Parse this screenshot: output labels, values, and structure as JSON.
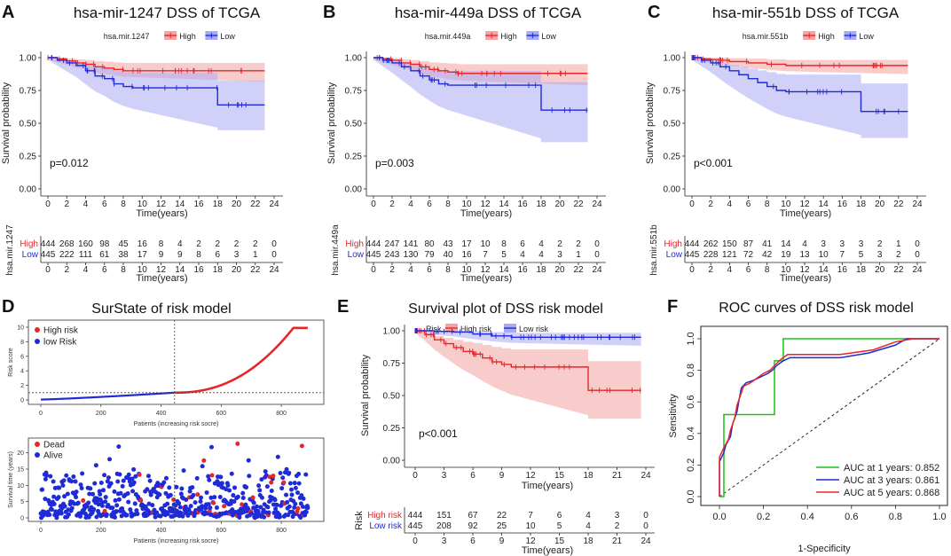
{
  "colors": {
    "high": "#e8262a",
    "low": "#1f2bd6",
    "high_fill": "#f4a3a3",
    "low_fill": "#a9a9f4",
    "green": "#19c219",
    "axis": "#222222",
    "grid": "#333333"
  },
  "chart_data": [
    {
      "id": "A",
      "type": "line",
      "panel_letter": "A",
      "title": "hsa-mir-1247 DSS of TCGA",
      "legend_title": "hsa.mir.1247",
      "legend_labels": [
        "High",
        "Low"
      ],
      "xlabel": "Time(years)",
      "ylabel": "Survival probability",
      "xlim": [
        0,
        24
      ],
      "ylim": [
        0,
        1
      ],
      "xticks": [
        "0",
        "2",
        "4",
        "6",
        "8",
        "10",
        "12",
        "14",
        "16",
        "18",
        "20",
        "22",
        "24"
      ],
      "yticks": [
        "0.00",
        "0.25",
        "0.50",
        "0.75",
        "1.00"
      ],
      "pvalue": "p=0.012",
      "series": [
        {
          "name": "High",
          "points": [
            [
              0,
              1
            ],
            [
              1,
              0.99
            ],
            [
              2,
              0.975
            ],
            [
              3,
              0.96
            ],
            [
              4,
              0.95
            ],
            [
              5,
              0.93
            ],
            [
              6,
              0.92
            ],
            [
              7,
              0.91
            ],
            [
              8,
              0.9
            ],
            [
              23,
              0.9
            ]
          ],
          "ci_upper": 0.99,
          "ci_lower": 0.82
        },
        {
          "name": "Low",
          "points": [
            [
              0,
              1
            ],
            [
              1,
              0.98
            ],
            [
              2,
              0.96
            ],
            [
              3,
              0.94
            ],
            [
              4,
              0.9
            ],
            [
              5,
              0.86
            ],
            [
              6,
              0.84
            ],
            [
              7,
              0.8
            ],
            [
              8,
              0.78
            ],
            [
              9,
              0.77
            ],
            [
              18,
              0.77
            ],
            [
              18,
              0.64
            ],
            [
              23,
              0.64
            ]
          ],
          "ci_upper": 0.96,
          "ci_lower": 0.43
        }
      ],
      "risk_table": {
        "ylabel": "hsa.mir.1247",
        "xlabel": "Time(years)",
        "row_labels": [
          "High",
          "Low"
        ],
        "rows": [
          [
            "444",
            "268",
            "160",
            "98",
            "45",
            "16",
            "8",
            "4",
            "2",
            "2",
            "2",
            "2",
            "0"
          ],
          [
            "445",
            "222",
            "111",
            "61",
            "38",
            "17",
            "9",
            "9",
            "8",
            "6",
            "3",
            "1",
            "0"
          ]
        ]
      }
    },
    {
      "id": "B",
      "type": "line",
      "panel_letter": "B",
      "title": "hsa-mir-449a DSS of TCGA",
      "legend_title": "hsa.mir.449a",
      "legend_labels": [
        "High",
        "Low"
      ],
      "xlabel": "Time(years)",
      "ylabel": "Survival probability",
      "xlim": [
        0,
        24
      ],
      "ylim": [
        0,
        1
      ],
      "xticks": [
        "0",
        "2",
        "4",
        "6",
        "8",
        "10",
        "12",
        "14",
        "16",
        "18",
        "20",
        "22",
        "24"
      ],
      "yticks": [
        "0.00",
        "0.25",
        "0.50",
        "0.75",
        "1.00"
      ],
      "pvalue": "p=0.003",
      "series": [
        {
          "name": "High",
          "points": [
            [
              0,
              1
            ],
            [
              1,
              0.99
            ],
            [
              2,
              0.98
            ],
            [
              3,
              0.96
            ],
            [
              4,
              0.95
            ],
            [
              5,
              0.93
            ],
            [
              6,
              0.91
            ],
            [
              7,
              0.9
            ],
            [
              8,
              0.89
            ],
            [
              9,
              0.88
            ],
            [
              23,
              0.88
            ]
          ],
          "ci_upper": 0.99,
          "ci_lower": 0.79
        },
        {
          "name": "Low",
          "points": [
            [
              0,
              1
            ],
            [
              1,
              0.98
            ],
            [
              2,
              0.96
            ],
            [
              3,
              0.93
            ],
            [
              4,
              0.9
            ],
            [
              5,
              0.86
            ],
            [
              6,
              0.83
            ],
            [
              7,
              0.8
            ],
            [
              8,
              0.79
            ],
            [
              18,
              0.79
            ],
            [
              18,
              0.6
            ],
            [
              23,
              0.6
            ]
          ],
          "ci_upper": 0.97,
          "ci_lower": 0.33
        }
      ],
      "risk_table": {
        "ylabel": "hsa.mir.449a",
        "xlabel": "Time(years)",
        "row_labels": [
          "High",
          "Low"
        ],
        "rows": [
          [
            "444",
            "247",
            "141",
            "80",
            "43",
            "17",
            "10",
            "8",
            "6",
            "4",
            "2",
            "2",
            "0"
          ],
          [
            "445",
            "243",
            "130",
            "79",
            "40",
            "16",
            "7",
            "5",
            "4",
            "4",
            "3",
            "1",
            "0"
          ]
        ]
      }
    },
    {
      "id": "C",
      "type": "line",
      "panel_letter": "C",
      "title": "hsa-mir-551b DSS of TCGA",
      "legend_title": "hsa.mir.551b",
      "legend_labels": [
        "High",
        "Low"
      ],
      "xlabel": "Time(years)",
      "ylabel": "Survival probability",
      "xlim": [
        0,
        24
      ],
      "ylim": [
        0,
        1
      ],
      "xticks": [
        "0",
        "2",
        "4",
        "6",
        "8",
        "10",
        "12",
        "14",
        "16",
        "18",
        "20",
        "22",
        "24"
      ],
      "yticks": [
        "0.00",
        "0.25",
        "0.50",
        "0.75",
        "1.00"
      ],
      "pvalue": "p<0.001",
      "series": [
        {
          "name": "High",
          "points": [
            [
              0,
              1
            ],
            [
              1,
              0.99
            ],
            [
              2,
              0.985
            ],
            [
              3,
              0.98
            ],
            [
              4,
              0.97
            ],
            [
              6,
              0.96
            ],
            [
              8,
              0.95
            ],
            [
              10,
              0.94
            ],
            [
              23,
              0.94
            ]
          ],
          "ci_upper": 1.0,
          "ci_lower": 0.88
        },
        {
          "name": "Low",
          "points": [
            [
              0,
              1
            ],
            [
              1,
              0.98
            ],
            [
              2,
              0.96
            ],
            [
              3,
              0.93
            ],
            [
              4,
              0.9
            ],
            [
              5,
              0.87
            ],
            [
              6,
              0.84
            ],
            [
              7,
              0.81
            ],
            [
              8,
              0.78
            ],
            [
              9,
              0.75
            ],
            [
              10,
              0.74
            ],
            [
              18,
              0.74
            ],
            [
              18,
              0.59
            ],
            [
              23,
              0.59
            ]
          ],
          "ci_upper": 0.96,
          "ci_lower": 0.37
        }
      ],
      "risk_table": {
        "ylabel": "hsa.mir.551b",
        "xlabel": "Time(years)",
        "row_labels": [
          "High",
          "Low"
        ],
        "rows": [
          [
            "444",
            "262",
            "150",
            "87",
            "41",
            "14",
            "4",
            "3",
            "3",
            "3",
            "2",
            "1",
            "0"
          ],
          [
            "445",
            "228",
            "121",
            "72",
            "42",
            "19",
            "13",
            "10",
            "7",
            "5",
            "3",
            "2",
            "0"
          ]
        ]
      }
    },
    {
      "id": "D_top",
      "type": "scatter",
      "panel_letter": "D",
      "title": "SurState of risk model",
      "legend_labels": [
        "High risk",
        "low Risk"
      ],
      "xlabel": "Patients (increasing risk socre)",
      "ylabel": "Risk score",
      "xlim": [
        0,
        900
      ],
      "ylim": [
        0,
        10
      ],
      "xticks": [
        "0",
        "200",
        "400",
        "600",
        "800"
      ],
      "yticks": [
        "0",
        "2",
        "4",
        "6",
        "8",
        "10"
      ],
      "cutoff_index": 445,
      "cutoff_score": 1.0,
      "n_patients": 889
    },
    {
      "id": "D_bottom",
      "type": "scatter",
      "legend_labels": [
        "Dead",
        "Alive"
      ],
      "xlabel": "Patients (increasing risk socre)",
      "ylabel": "Survival time (years)",
      "xlim": [
        0,
        900
      ],
      "ylim": [
        0,
        24
      ],
      "xticks": [
        "0",
        "200",
        "400",
        "600",
        "800"
      ],
      "yticks": [
        "0",
        "5",
        "10",
        "15",
        "20"
      ],
      "cutoff_index": 445
    },
    {
      "id": "E",
      "type": "line",
      "panel_letter": "E",
      "title": "Survival plot of DSS risk model",
      "legend_title": "Risk",
      "legend_labels": [
        "High risk",
        "Low risk"
      ],
      "xlabel": "Time(years)",
      "ylabel": "Survival probability",
      "xlim": [
        0,
        24
      ],
      "ylim": [
        0,
        1
      ],
      "xticks": [
        "0",
        "3",
        "6",
        "9",
        "12",
        "15",
        "18",
        "21",
        "24"
      ],
      "yticks": [
        "0.00",
        "0.25",
        "0.50",
        "0.75",
        "1.00"
      ],
      "pvalue": "p<0.001",
      "series": [
        {
          "name": "High risk",
          "points": [
            [
              0,
              1
            ],
            [
              1,
              0.97
            ],
            [
              2,
              0.93
            ],
            [
              3,
              0.9
            ],
            [
              4,
              0.87
            ],
            [
              5,
              0.84
            ],
            [
              6,
              0.82
            ],
            [
              7,
              0.79
            ],
            [
              8,
              0.76
            ],
            [
              9,
              0.74
            ],
            [
              10,
              0.72
            ],
            [
              18,
              0.72
            ],
            [
              18,
              0.54
            ],
            [
              23.5,
              0.54
            ]
          ],
          "ci_upper": 0.97,
          "ci_lower": 0.3
        },
        {
          "name": "Low risk",
          "points": [
            [
              0,
              1
            ],
            [
              2,
              0.995
            ],
            [
              4,
              0.99
            ],
            [
              6,
              0.975
            ],
            [
              8,
              0.96
            ],
            [
              10,
              0.95
            ],
            [
              23.5,
              0.95
            ]
          ],
          "ci_upper": 1.0,
          "ci_lower": 0.89
        }
      ],
      "risk_table": {
        "ylabel": "Risk",
        "xlabel": "Time(years)",
        "row_labels": [
          "High risk",
          "Low risk"
        ],
        "rows": [
          [
            "444",
            "151",
            "67",
            "22",
            "7",
            "6",
            "4",
            "3",
            "0"
          ],
          [
            "445",
            "208",
            "92",
            "25",
            "10",
            "5",
            "4",
            "2",
            "0"
          ]
        ]
      }
    },
    {
      "id": "F",
      "type": "line",
      "panel_letter": "F",
      "title": "ROC curves of DSS risk model",
      "xlabel": "1-Specificity",
      "ylabel": "Sensitivity",
      "xlim": [
        0,
        1
      ],
      "ylim": [
        0,
        1
      ],
      "xticks": [
        "0.0",
        "0.2",
        "0.4",
        "0.6",
        "0.8",
        "1.0"
      ],
      "yticks": [
        "0.0",
        "0.2",
        "0.4",
        "0.6",
        "0.8",
        "1.0"
      ],
      "series": [
        {
          "name": "AUC at 1 years: 0.852",
          "auc": 0.852,
          "points": [
            [
              0,
              0
            ],
            [
              0.02,
              0
            ],
            [
              0.02,
              0.52
            ],
            [
              0.1,
              0.52
            ],
            [
              0.15,
              0.52
            ],
            [
              0.25,
              0.52
            ],
            [
              0.25,
              0.86
            ],
            [
              0.29,
              0.86
            ],
            [
              0.29,
              1.0
            ],
            [
              1,
              1
            ]
          ]
        },
        {
          "name": "AUC at 3 years: 0.861",
          "auc": 0.861,
          "points": [
            [
              0,
              0
            ],
            [
              0,
              0.22
            ],
            [
              0.02,
              0.28
            ],
            [
              0.03,
              0.33
            ],
            [
              0.05,
              0.38
            ],
            [
              0.06,
              0.46
            ],
            [
              0.08,
              0.54
            ],
            [
              0.09,
              0.62
            ],
            [
              0.1,
              0.69
            ],
            [
              0.12,
              0.72
            ],
            [
              0.16,
              0.74
            ],
            [
              0.19,
              0.76
            ],
            [
              0.22,
              0.78
            ],
            [
              0.24,
              0.8
            ],
            [
              0.26,
              0.83
            ],
            [
              0.29,
              0.86
            ],
            [
              0.32,
              0.88
            ],
            [
              0.4,
              0.88
            ],
            [
              0.55,
              0.88
            ],
            [
              0.68,
              0.91
            ],
            [
              0.8,
              0.96
            ],
            [
              0.85,
              1.0
            ],
            [
              1,
              1
            ]
          ]
        },
        {
          "name": "AUC at 5 years: 0.868",
          "auc": 0.868,
          "points": [
            [
              0,
              0
            ],
            [
              0,
              0.25
            ],
            [
              0.02,
              0.31
            ],
            [
              0.04,
              0.36
            ],
            [
              0.05,
              0.42
            ],
            [
              0.07,
              0.5
            ],
            [
              0.08,
              0.58
            ],
            [
              0.1,
              0.66
            ],
            [
              0.11,
              0.7
            ],
            [
              0.14,
              0.72
            ],
            [
              0.17,
              0.75
            ],
            [
              0.2,
              0.78
            ],
            [
              0.23,
              0.8
            ],
            [
              0.25,
              0.83
            ],
            [
              0.28,
              0.87
            ],
            [
              0.31,
              0.9
            ],
            [
              0.4,
              0.9
            ],
            [
              0.55,
              0.9
            ],
            [
              0.7,
              0.93
            ],
            [
              0.8,
              0.98
            ],
            [
              0.88,
              1.0
            ],
            [
              1,
              1
            ]
          ]
        }
      ]
    }
  ]
}
